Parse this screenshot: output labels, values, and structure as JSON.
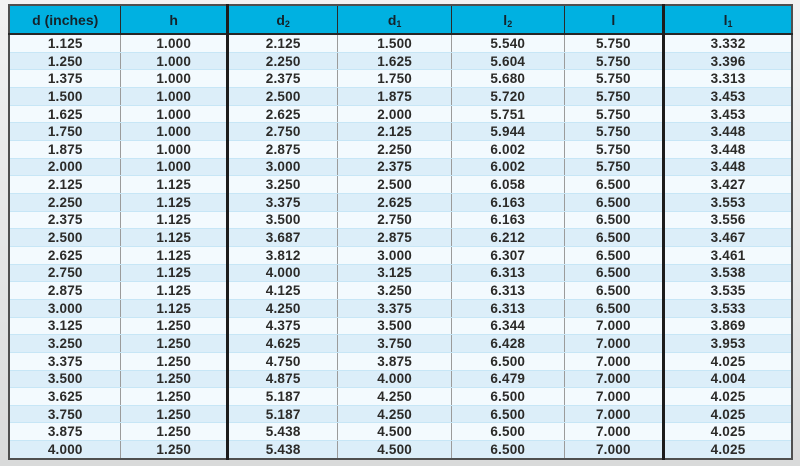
{
  "colors": {
    "header_bg": "#00b1e1",
    "header_text": "#14232b",
    "row_odd_bg": "#f3fafe",
    "row_even_bg": "#dceef9",
    "row_grid_line": "#c7e6f6",
    "column_line_thin": "#9b9b9b",
    "column_line_thick": "#1c1c1c",
    "outer_border": "#4f4f4f",
    "body_text": "#2b2a28"
  },
  "table": {
    "columns": [
      {
        "base": "d (inches)",
        "sub": ""
      },
      {
        "base": "h",
        "sub": ""
      },
      {
        "base": "d",
        "sub": "2"
      },
      {
        "base": "d",
        "sub": "1"
      },
      {
        "base": "l",
        "sub": "2"
      },
      {
        "base": "l",
        "sub": ""
      },
      {
        "base": "l",
        "sub": "1"
      }
    ],
    "rows": [
      [
        "1.125",
        "1.000",
        "2.125",
        "1.500",
        "5.540",
        "5.750",
        "3.332"
      ],
      [
        "1.250",
        "1.000",
        "2.250",
        "1.625",
        "5.604",
        "5.750",
        "3.396"
      ],
      [
        "1.375",
        "1.000",
        "2.375",
        "1.750",
        "5.680",
        "5.750",
        "3.313"
      ],
      [
        "1.500",
        "1.000",
        "2.500",
        "1.875",
        "5.720",
        "5.750",
        "3.453"
      ],
      [
        "1.625",
        "1.000",
        "2.625",
        "2.000",
        "5.751",
        "5.750",
        "3.453"
      ],
      [
        "1.750",
        "1.000",
        "2.750",
        "2.125",
        "5.944",
        "5.750",
        "3.448"
      ],
      [
        "1.875",
        "1.000",
        "2.875",
        "2.250",
        "6.002",
        "5.750",
        "3.448"
      ],
      [
        "2.000",
        "1.000",
        "3.000",
        "2.375",
        "6.002",
        "5.750",
        "3.448"
      ],
      [
        "2.125",
        "1.125",
        "3.250",
        "2.500",
        "6.058",
        "6.500",
        "3.427"
      ],
      [
        "2.250",
        "1.125",
        "3.375",
        "2.625",
        "6.163",
        "6.500",
        "3.553"
      ],
      [
        "2.375",
        "1.125",
        "3.500",
        "2.750",
        "6.163",
        "6.500",
        "3.556"
      ],
      [
        "2.500",
        "1.125",
        "3.687",
        "2.875",
        "6.212",
        "6.500",
        "3.467"
      ],
      [
        "2.625",
        "1.125",
        "3.812",
        "3.000",
        "6.307",
        "6.500",
        "3.461"
      ],
      [
        "2.750",
        "1.125",
        "4.000",
        "3.125",
        "6.313",
        "6.500",
        "3.538"
      ],
      [
        "2.875",
        "1.125",
        "4.125",
        "3.250",
        "6.313",
        "6.500",
        "3.535"
      ],
      [
        "3.000",
        "1.125",
        "4.250",
        "3.375",
        "6.313",
        "6.500",
        "3.533"
      ],
      [
        "3.125",
        "1.250",
        "4.375",
        "3.500",
        "6.344",
        "7.000",
        "3.869"
      ],
      [
        "3.250",
        "1.250",
        "4.625",
        "3.750",
        "6.428",
        "7.000",
        "3.953"
      ],
      [
        "3.375",
        "1.250",
        "4.750",
        "3.875",
        "6.500",
        "7.000",
        "4.025"
      ],
      [
        "3.500",
        "1.250",
        "4.875",
        "4.000",
        "6.479",
        "7.000",
        "4.004"
      ],
      [
        "3.625",
        "1.250",
        "5.187",
        "4.250",
        "6.500",
        "7.000",
        "4.025"
      ],
      [
        "3.750",
        "1.250",
        "5.187",
        "4.250",
        "6.500",
        "7.000",
        "4.025"
      ],
      [
        "3.875",
        "1.250",
        "5.438",
        "4.500",
        "6.500",
        "7.000",
        "4.025"
      ],
      [
        "4.000",
        "1.250",
        "5.438",
        "4.500",
        "6.500",
        "7.000",
        "4.025"
      ]
    ]
  }
}
